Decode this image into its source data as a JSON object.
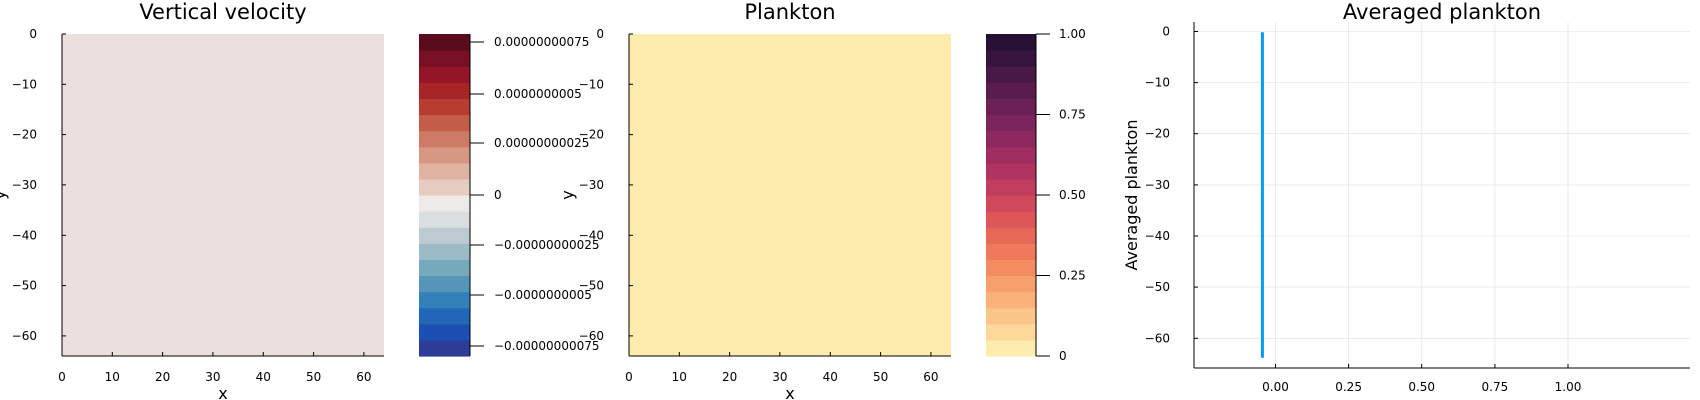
{
  "chart_data": [
    {
      "type": "heatmap",
      "title": "Vertical velocity",
      "xlabel": "x",
      "ylabel": "y",
      "xlim": [
        0,
        64
      ],
      "ylim": [
        -64,
        0
      ],
      "xticks": [
        "0",
        "10",
        "20",
        "30",
        "40",
        "50",
        "60"
      ],
      "yticks": [
        "0",
        "−10",
        "−20",
        "−30",
        "−40",
        "−50",
        "−60"
      ],
      "field_value": 0,
      "field_color": "#ebe0dd",
      "colorbar": {
        "colors": [
          "#2d3c97",
          "#1d4fb3",
          "#2266b7",
          "#3480b9",
          "#5596b8",
          "#77a9bd",
          "#9bbcc6",
          "#bbcbd1",
          "#d9dee0",
          "#eeeae7",
          "#e6cbc1",
          "#e0b2a1",
          "#d69783",
          "#cd7b66",
          "#c35c48",
          "#b73d31",
          "#a72427",
          "#931527",
          "#780f24",
          "#5b0b1e"
        ],
        "ticks": [
          "−0.00000000075",
          "−0.0000000005",
          "−0.00000000025",
          "0",
          "0.00000000025",
          "0.0000000005",
          "0.00000000075"
        ]
      }
    },
    {
      "type": "heatmap",
      "title": "Plankton",
      "xlabel": "x",
      "ylabel": "y",
      "xlim": [
        0,
        64
      ],
      "ylim": [
        -64,
        0
      ],
      "xticks": [
        "0",
        "10",
        "20",
        "30",
        "40",
        "50",
        "60"
      ],
      "yticks": [
        "0",
        "−10",
        "−20",
        "−30",
        "−40",
        "−50",
        "−60"
      ],
      "field_value": 0,
      "field_color": "#fdecad",
      "colorbar": {
        "colors": [
          "#fdecad",
          "#fcd89b",
          "#fbc58a",
          "#f9b27a",
          "#f79f6d",
          "#f48c62",
          "#ef7a5b",
          "#e86858",
          "#de5658",
          "#d0485b",
          "#c13d5e",
          "#b0345f",
          "#9f2d60",
          "#8e2960",
          "#7c245c",
          "#6b2056",
          "#5a1c4f",
          "#481847",
          "#37143d",
          "#261134"
        ],
        "ticks": [
          "0",
          "0.25",
          "0.50",
          "0.75",
          "1.00"
        ]
      }
    },
    {
      "type": "line",
      "title": "Averaged plankton",
      "xlabel": "",
      "ylabel": "Averaged plankton",
      "xlim": [
        -0.16,
        1.0
      ],
      "ylim": [
        -66,
        2
      ],
      "xticks": [
        "0.00",
        "0.25",
        "0.50",
        "0.75",
        "1.00"
      ],
      "yticks": [
        "0",
        "−10",
        "−20",
        "−30",
        "−40",
        "−50",
        "−60"
      ],
      "grid": true,
      "series": [
        {
          "color": "#009af9",
          "x": [
            0,
            0
          ],
          "y": [
            0,
            -64
          ]
        }
      ]
    }
  ]
}
